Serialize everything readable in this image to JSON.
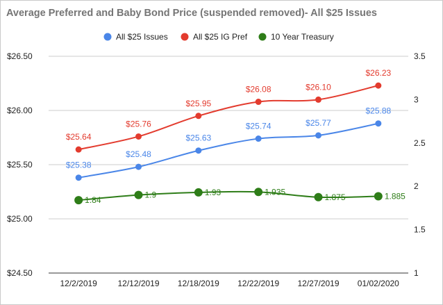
{
  "chart_data": {
    "type": "line",
    "title": "Average Preferred and Baby Bond Price (suspended removed)- All $25 Issues",
    "categories": [
      "12/2/2019",
      "12/12/2019",
      "12/18/2019",
      "12/22/2019",
      "12/27/2019",
      "01/02/2020"
    ],
    "y_left": {
      "range": [
        24.5,
        26.5
      ],
      "ticks": [
        24.5,
        25.0,
        25.5,
        26.0,
        26.5
      ],
      "tick_labels": [
        "$24.50",
        "$25.00",
        "$25.50",
        "$26.00",
        "$26.50"
      ]
    },
    "y_right": {
      "range": [
        1,
        3.5
      ],
      "ticks": [
        1,
        1.5,
        2,
        2.5,
        3,
        3.5
      ],
      "tick_labels": [
        "1",
        "1.5",
        "2",
        "2.5",
        "3",
        "3.5"
      ]
    },
    "grid": true,
    "legend_position": "top",
    "series": [
      {
        "name": "All $25 Issues",
        "axis": "left",
        "color": "#4a86e8",
        "values": [
          25.38,
          25.48,
          25.63,
          25.74,
          25.77,
          25.88
        ],
        "labels": [
          "$25.38",
          "$25.48",
          "$25.63",
          "$25.74",
          "$25.77",
          "$25.88"
        ]
      },
      {
        "name": "All $25 IG Pref",
        "axis": "left",
        "color": "#e33b2e",
        "values": [
          25.64,
          25.76,
          25.95,
          26.08,
          26.1,
          26.23
        ],
        "labels": [
          "$25.64",
          "$25.76",
          "$25.95",
          "$26.08",
          "$26.10",
          "$26.23"
        ]
      },
      {
        "name": "10 Year Treasury",
        "axis": "right",
        "color": "#2e7d18",
        "values": [
          1.84,
          1.9,
          1.93,
          1.935,
          1.875,
          1.885
        ],
        "labels": [
          "1.84",
          "1.9",
          "1.93",
          "1.935",
          "1.875",
          "1.885"
        ]
      }
    ]
  }
}
